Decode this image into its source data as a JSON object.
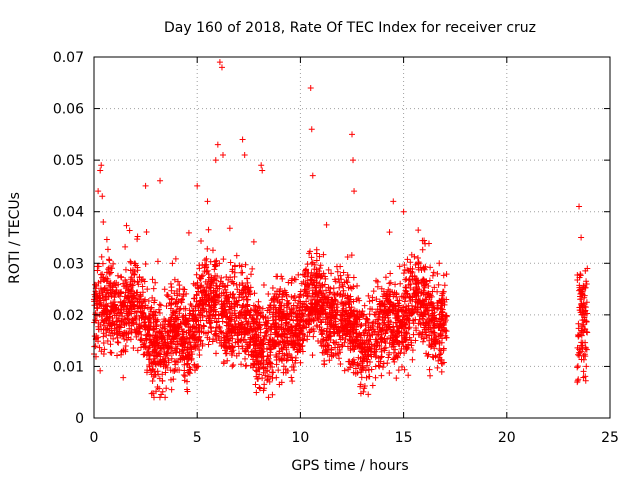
{
  "chart_data": {
    "type": "scatter",
    "title": "Day 160 of 2018, Rate Of TEC Index for receiver cruz",
    "xlabel": "GPS time / hours",
    "ylabel": "ROTI / TECUs",
    "xlim": [
      0,
      25
    ],
    "ylim": [
      0,
      0.07
    ],
    "xticks": [
      0,
      5,
      10,
      15,
      20,
      25
    ],
    "xtick_labels": [
      "0",
      "5",
      "10",
      "15",
      "20",
      "25"
    ],
    "yticks": [
      0,
      0.01,
      0.02,
      0.03,
      0.04,
      0.05,
      0.06,
      0.07
    ],
    "ytick_labels": [
      "0",
      "0.01",
      "0.02",
      "0.03",
      "0.04",
      "0.05",
      "0.06",
      "0.07"
    ],
    "grid": true,
    "marker": "+",
    "color": "#ff0000",
    "series": [
      {
        "name": "ROTI",
        "description_segments": [
          {
            "x_start": 0.0,
            "x_end": 17.1,
            "typical_min": 0.007,
            "typical_max": 0.03
          },
          {
            "x_start": 23.4,
            "x_end": 23.9,
            "typical_min": 0.008,
            "typical_max": 0.035
          }
        ],
        "x": [
          0.2,
          0.3,
          0.35,
          0.4,
          0.45,
          2.5,
          3.2,
          5.0,
          5.5,
          5.9,
          6.0,
          6.1,
          6.2,
          6.25,
          7.2,
          7.3,
          8.1,
          8.15,
          10.5,
          10.55,
          10.6,
          12.5,
          12.55,
          12.6,
          14.5,
          15.0,
          23.5,
          23.6,
          23.65,
          23.7,
          23.8,
          23.85,
          23.9
        ],
        "values": [
          0.044,
          0.048,
          0.049,
          0.043,
          0.038,
          0.045,
          0.046,
          0.045,
          0.042,
          0.05,
          0.053,
          0.069,
          0.068,
          0.051,
          0.054,
          0.051,
          0.049,
          0.048,
          0.064,
          0.056,
          0.047,
          0.055,
          0.05,
          0.044,
          0.042,
          0.04,
          0.041,
          0.035,
          0.025,
          0.02,
          0.012,
          0.01,
          0.029
        ]
      }
    ]
  }
}
